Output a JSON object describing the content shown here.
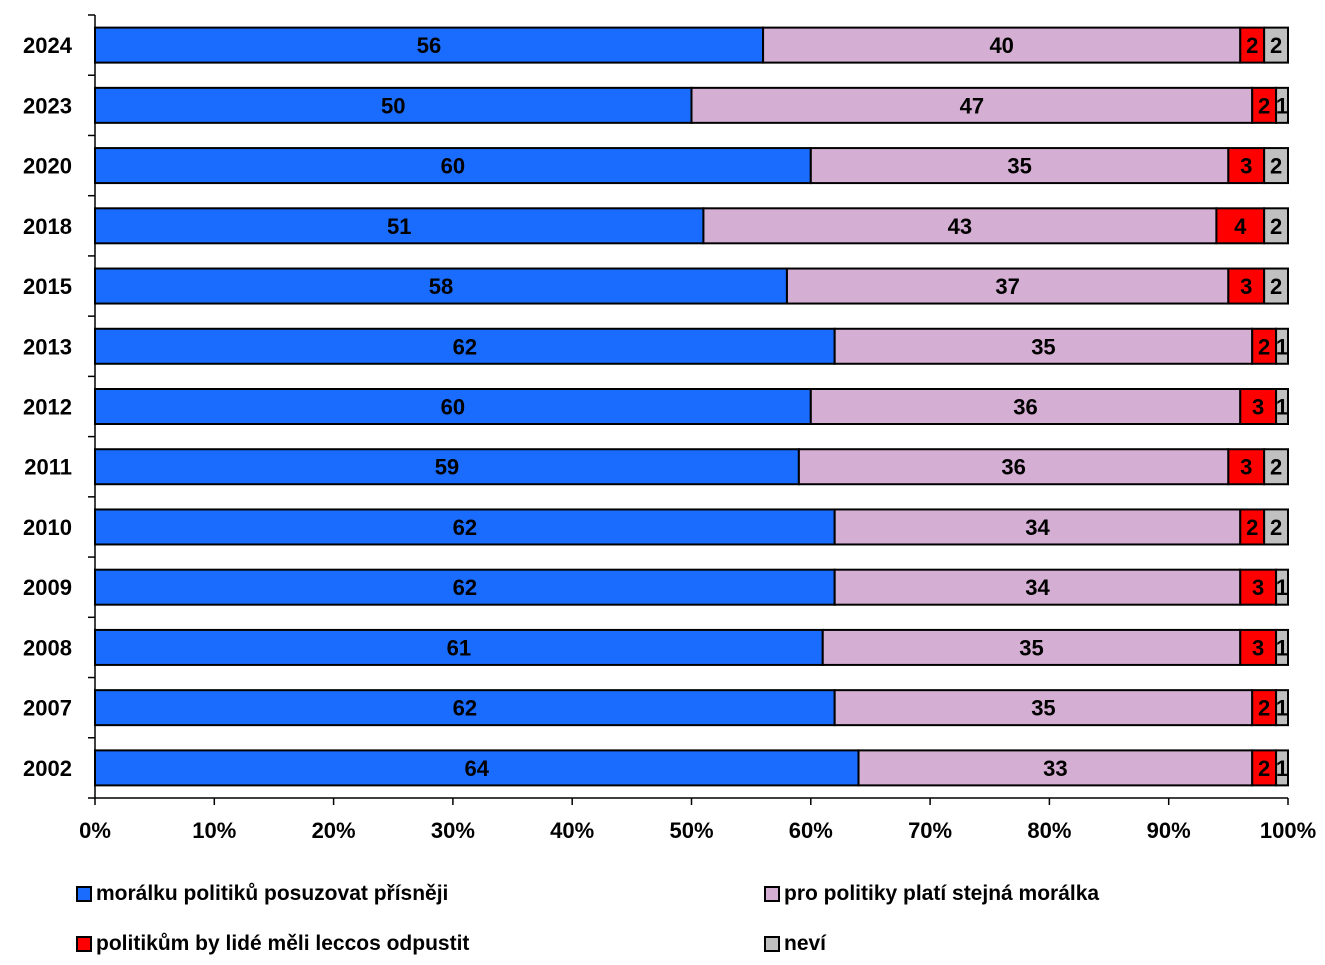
{
  "chart_data": {
    "type": "bar",
    "orientation": "horizontal",
    "stacked": "percent",
    "categories": [
      "2024",
      "2023",
      "2020",
      "2018",
      "2015",
      "2013",
      "2012",
      "2011",
      "2010",
      "2009",
      "2008",
      "2007",
      "2002"
    ],
    "series": [
      {
        "name": "morálku politiků posuzovat přísněji",
        "color": "#1a6cff",
        "values": [
          56,
          50,
          60,
          51,
          58,
          62,
          60,
          59,
          62,
          62,
          61,
          62,
          64
        ]
      },
      {
        "name": "pro politiky platí stejná morálka",
        "color": "#d5aed3",
        "values": [
          40,
          47,
          35,
          43,
          37,
          35,
          36,
          36,
          34,
          34,
          35,
          35,
          33
        ]
      },
      {
        "name": "politikům by lidé měli leccos odpustit",
        "color": "#ff0000",
        "values": [
          2,
          2,
          3,
          4,
          3,
          2,
          3,
          3,
          2,
          3,
          3,
          2,
          2
        ]
      },
      {
        "name": "neví",
        "color": "#c0c0c0",
        "values": [
          2,
          1,
          2,
          2,
          2,
          1,
          1,
          2,
          2,
          1,
          1,
          1,
          1
        ]
      }
    ],
    "x_ticks": [
      "0%",
      "10%",
      "20%",
      "30%",
      "40%",
      "50%",
      "60%",
      "70%",
      "80%",
      "90%",
      "100%"
    ],
    "xlim": [
      0,
      100
    ],
    "legend_position": "bottom",
    "grid": false
  }
}
